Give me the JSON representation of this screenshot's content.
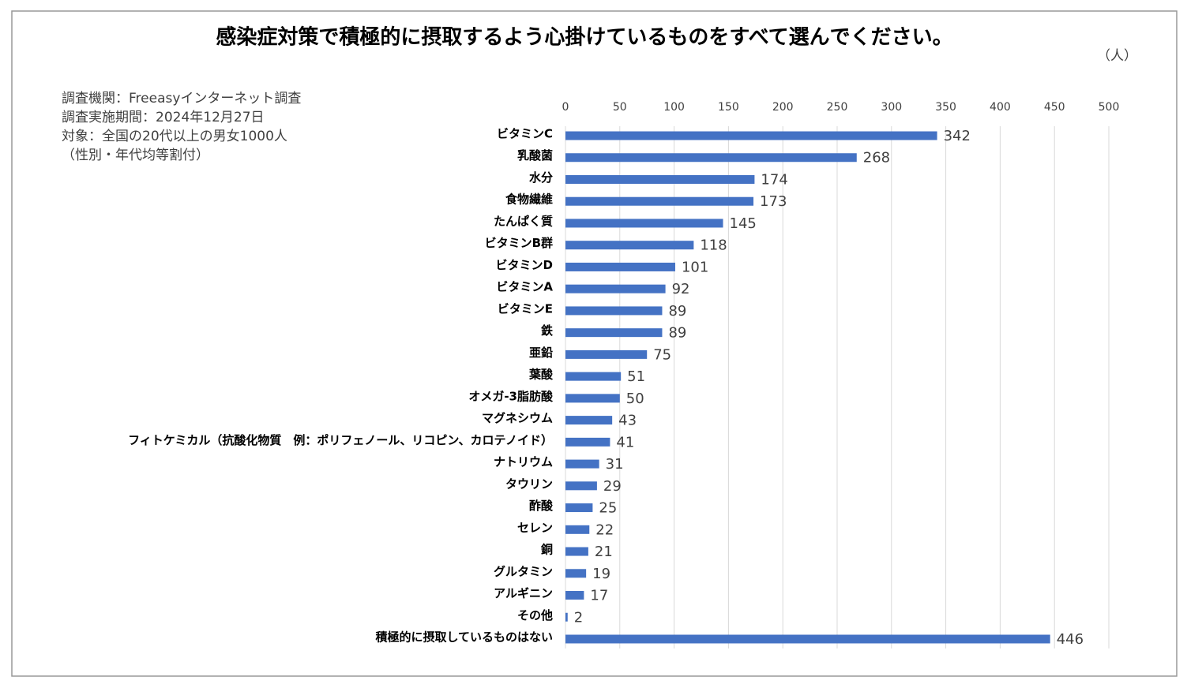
{
  "chart_data": {
    "type": "bar",
    "orientation": "horizontal",
    "title": "感染症対策で積極的に摂取するよう心掛けているものをすべて選んでください。",
    "unit_label": "（人）",
    "notes": [
      "調査機関：Freeasyインターネット調査",
      "調査実施期間：2024年12月27日",
      "対象：全国の20代以上の男女1000人",
      "（性別・年代均等割付）"
    ],
    "categories": [
      "ビタミンC",
      "乳酸菌",
      "水分",
      "食物繊維",
      "たんぱく質",
      "ビタミンB群",
      "ビタミンD",
      "ビタミンA",
      "ビタミンE",
      "鉄",
      "亜鉛",
      "葉酸",
      "オメガ-3脂肪酸",
      "マグネシウム",
      "フィトケミカル（抗酸化物質　例：ポリフェノール、リコピン、カロテノイド）",
      "ナトリウム",
      "タウリン",
      "酢酸",
      "セレン",
      "銅",
      "グルタミン",
      "アルギニン",
      "その他",
      "積極的に摂取しているものはない"
    ],
    "values": [
      342,
      268,
      174,
      173,
      145,
      118,
      101,
      92,
      89,
      89,
      75,
      51,
      50,
      43,
      41,
      31,
      29,
      25,
      22,
      21,
      19,
      17,
      2,
      446
    ],
    "color": "#4472c4",
    "xlim": [
      0,
      500
    ],
    "xticks": [
      0,
      50,
      100,
      150,
      200,
      250,
      300,
      350,
      400,
      450,
      500
    ],
    "grid": true
  }
}
